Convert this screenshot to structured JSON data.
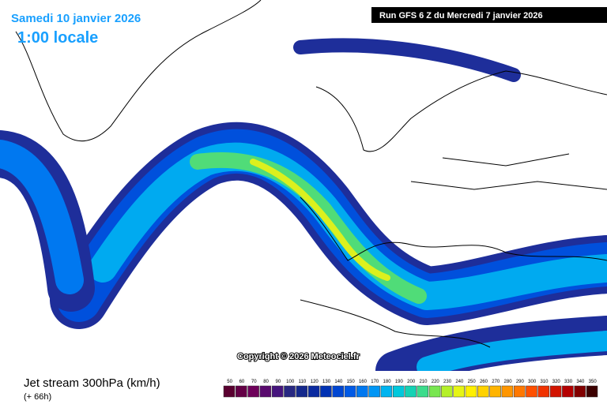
{
  "header": {
    "date": "Samedi 10 janvier 2026",
    "time": "1:00 locale",
    "run": "Run GFS 6 Z du Mercredi 7 janvier 2026"
  },
  "copyright": "Copyright © 2026 Meteociel.fr",
  "footer": {
    "title": "Jet stream 300hPa (km/h)",
    "lead": "(+ 66h)"
  },
  "legend": {
    "values": [
      50,
      60,
      70,
      80,
      90,
      100,
      110,
      120,
      130,
      140,
      150,
      160,
      170,
      180,
      190,
      200,
      210,
      220,
      230,
      240,
      250,
      260,
      270,
      280,
      290,
      300,
      310,
      320,
      330,
      340,
      350
    ],
    "colors": [
      "#5a0030",
      "#640046",
      "#6e005a",
      "#5a0a6e",
      "#46147d",
      "#282882",
      "#14288c",
      "#0a2aa0",
      "#0032b4",
      "#0046d2",
      "#005ae6",
      "#0078f0",
      "#0096f5",
      "#00b4f0",
      "#00c8dc",
      "#14d2b4",
      "#3cdc8c",
      "#78e650",
      "#b4f028",
      "#e6f514",
      "#fff000",
      "#ffd200",
      "#ffb400",
      "#ff9600",
      "#ff7800",
      "#ff5000",
      "#f03200",
      "#d21400",
      "#b40000",
      "#820000",
      "#3c0000"
    ]
  }
}
